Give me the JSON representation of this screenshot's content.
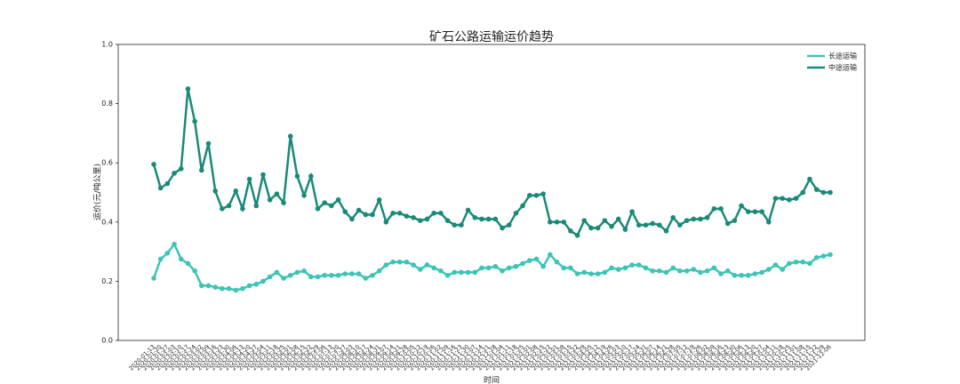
{
  "chart_data": {
    "type": "line",
    "title": "矿石公路运输运价趋势",
    "x_label": "时间",
    "y_label": "运价(元/吨公里)",
    "categories": [
      "2020-01-13",
      "2020-01-20",
      "2020-01-27",
      "2020-02-03",
      "2020-02-10",
      "2020-02-17",
      "2020-02-24",
      "2020-03-02",
      "2020-03-09",
      "2020-03-16",
      "2020-03-23",
      "2020-03-30",
      "2020-04-06",
      "2020-04-13",
      "2020-04-20",
      "2020-04-27",
      "2020-05-04",
      "2020-05-11",
      "2020-05-18",
      "2020-05-25",
      "2020-06-01",
      "2020-06-08",
      "2020-06-15",
      "2020-06-22",
      "2020-06-29",
      "2020-07-06",
      "2020-07-13",
      "2020-07-20",
      "2020-07-27",
      "2020-08-03",
      "2020-08-10",
      "2020-08-17",
      "2020-08-24",
      "2020-08-31",
      "2020-09-07",
      "2020-09-14",
      "2020-09-21",
      "2020-09-28",
      "2020-10-05",
      "2020-10-12",
      "2020-10-19",
      "2020-10-26",
      "2020-11-02",
      "2020-11-09",
      "2020-11-16",
      "2020-11-23",
      "2020-11-30",
      "2020-12-07",
      "2020-12-14",
      "2020-12-21",
      "2020-12-28",
      "2021-01-04",
      "2021-01-11",
      "2021-01-18",
      "2021-01-25",
      "2021-02-01",
      "2021-02-08",
      "2021-02-15",
      "2021-02-22",
      "2021-03-01",
      "2021-03-08",
      "2021-03-15",
      "2021-03-22",
      "2021-03-29",
      "2021-04-05",
      "2021-04-12",
      "2021-04-19",
      "2021-04-26",
      "2021-05-03",
      "2021-05-10",
      "2021-05-17",
      "2021-05-24",
      "2021-05-31",
      "2021-06-07",
      "2021-06-14",
      "2021-06-21",
      "2021-06-28",
      "2021-07-05",
      "2021-07-12",
      "2021-07-19",
      "2021-07-26",
      "2021-08-02",
      "2021-08-09",
      "2021-08-16",
      "2021-08-23",
      "2021-08-30",
      "2021-09-06",
      "2021-09-13",
      "2021-09-20",
      "2021-09-27",
      "2021-10-04",
      "2021-10-11",
      "2021-10-18",
      "2021-10-25",
      "2021-11-01",
      "2021-11-08",
      "2021-11-15",
      "2021-11-22",
      "2021-11-29",
      "2021-12-06"
    ],
    "series": [
      {
        "name": "长途运输",
        "color": "#3cc4b4",
        "values": [
          0.21,
          0.275,
          0.295,
          0.325,
          0.275,
          0.26,
          0.235,
          0.185,
          0.185,
          0.18,
          0.175,
          0.175,
          0.17,
          0.175,
          0.185,
          0.19,
          0.2,
          0.215,
          0.23,
          0.21,
          0.22,
          0.23,
          0.235,
          0.215,
          0.215,
          0.22,
          0.22,
          0.22,
          0.225,
          0.225,
          0.225,
          0.21,
          0.22,
          0.235,
          0.255,
          0.265,
          0.265,
          0.265,
          0.255,
          0.24,
          0.255,
          0.245,
          0.235,
          0.22,
          0.23,
          0.23,
          0.23,
          0.23,
          0.245,
          0.245,
          0.25,
          0.235,
          0.245,
          0.25,
          0.26,
          0.27,
          0.275,
          0.25,
          0.29,
          0.265,
          0.245,
          0.245,
          0.225,
          0.23,
          0.225,
          0.225,
          0.23,
          0.245,
          0.24,
          0.245,
          0.255,
          0.255,
          0.245,
          0.235,
          0.235,
          0.23,
          0.245,
          0.235,
          0.235,
          0.24,
          0.23,
          0.235,
          0.245,
          0.225,
          0.235,
          0.22,
          0.22,
          0.22,
          0.225,
          0.23,
          0.24,
          0.255,
          0.24,
          0.26,
          0.265,
          0.265,
          0.26,
          0.28,
          0.285,
          0.29
        ]
      },
      {
        "name": "中途运输",
        "color": "#1a8a78",
        "values": [
          0.595,
          0.515,
          0.53,
          0.565,
          0.58,
          0.85,
          0.74,
          0.575,
          0.665,
          0.505,
          0.445,
          0.455,
          0.505,
          0.445,
          0.545,
          0.455,
          0.56,
          0.475,
          0.495,
          0.465,
          0.69,
          0.555,
          0.49,
          0.555,
          0.445,
          0.465,
          0.455,
          0.475,
          0.435,
          0.41,
          0.44,
          0.425,
          0.425,
          0.475,
          0.4,
          0.43,
          0.43,
          0.42,
          0.415,
          0.405,
          0.41,
          0.43,
          0.43,
          0.405,
          0.39,
          0.39,
          0.44,
          0.415,
          0.41,
          0.41,
          0.41,
          0.38,
          0.39,
          0.43,
          0.455,
          0.49,
          0.49,
          0.495,
          0.4,
          0.4,
          0.4,
          0.37,
          0.355,
          0.405,
          0.38,
          0.38,
          0.405,
          0.385,
          0.41,
          0.375,
          0.435,
          0.39,
          0.39,
          0.395,
          0.39,
          0.37,
          0.415,
          0.39,
          0.405,
          0.41,
          0.41,
          0.415,
          0.445,
          0.445,
          0.395,
          0.405,
          0.455,
          0.435,
          0.435,
          0.435,
          0.4,
          0.48,
          0.48,
          0.475,
          0.48,
          0.5,
          0.545,
          0.51,
          0.5,
          0.5
        ]
      }
    ],
    "ylim": [
      0,
      1
    ],
    "yticks": [
      {
        "value": 0,
        "label": "0.0"
      },
      0.2,
      0.4,
      0.6,
      0.8,
      {
        "value": 1,
        "label": "1.0"
      }
    ],
    "legend": "upper right",
    "grid": false
  }
}
